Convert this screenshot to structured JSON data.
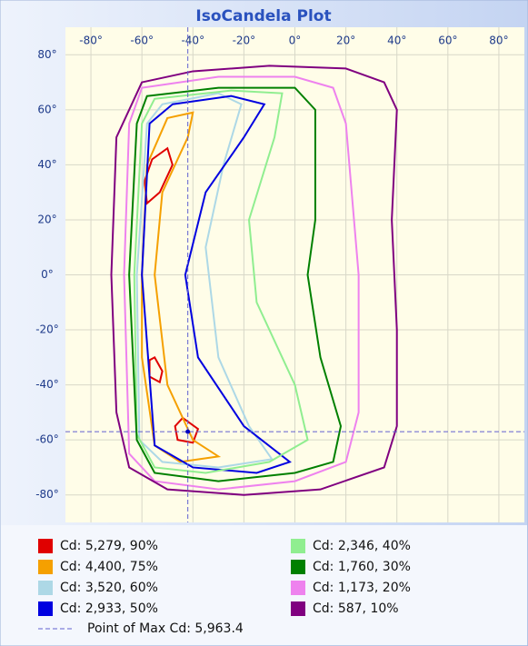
{
  "chart_data": {
    "type": "contour",
    "title": "IsoCandela Plot",
    "xlim": [
      -90,
      90
    ],
    "ylim": [
      -90,
      90
    ],
    "xticks": [
      {
        "value": -80,
        "label": "-80°"
      },
      {
        "value": -60,
        "label": "-60°"
      },
      {
        "value": -40,
        "label": "-40°"
      },
      {
        "value": -20,
        "label": "-20°"
      },
      {
        "value": 0,
        "label": "0°"
      },
      {
        "value": 20,
        "label": "20°"
      },
      {
        "value": 40,
        "label": "40°"
      },
      {
        "value": 60,
        "label": "60°"
      },
      {
        "value": 80,
        "label": "80°"
      }
    ],
    "yticks": [
      {
        "value": 80,
        "label": "80°"
      },
      {
        "value": 60,
        "label": "60°"
      },
      {
        "value": 40,
        "label": "40°"
      },
      {
        "value": 20,
        "label": "20°"
      },
      {
        "value": 0,
        "label": "0°"
      },
      {
        "value": -20,
        "label": "-20°"
      },
      {
        "value": -40,
        "label": "-40°"
      },
      {
        "value": -60,
        "label": "-60°"
      },
      {
        "value": -80,
        "label": "-80°"
      }
    ],
    "grid": true,
    "series": [
      {
        "name": "Cd: 5,279, 90%",
        "color": "#e00000",
        "contours": [
          [
            [
              -50,
              46
            ],
            [
              -48,
              40
            ],
            [
              -53,
              30
            ],
            [
              -58,
              26
            ],
            [
              -59,
              34
            ],
            [
              -56,
              42
            ]
          ],
          [
            [
              -55,
              -30
            ],
            [
              -52,
              -35
            ],
            [
              -53,
              -39
            ],
            [
              -57,
              -37
            ],
            [
              -57,
              -31
            ]
          ],
          [
            [
              -44,
              -52
            ],
            [
              -38,
              -56
            ],
            [
              -40,
              -61
            ],
            [
              -46,
              -60
            ],
            [
              -47,
              -55
            ]
          ]
        ]
      },
      {
        "name": "Cd: 4,400, 75%",
        "color": "#f5a000",
        "contours": [
          [
            [
              -50,
              57
            ],
            [
              -40,
              59
            ],
            [
              -42,
              50
            ],
            [
              -52,
              30
            ],
            [
              -55,
              0
            ],
            [
              -50,
              -40
            ],
            [
              -40,
              -60
            ],
            [
              -30,
              -66
            ],
            [
              -45,
              -68
            ],
            [
              -55,
              -62
            ],
            [
              -60,
              -30
            ],
            [
              -60,
              0
            ],
            [
              -58,
              40
            ]
          ]
        ]
      },
      {
        "name": "Cd: 3,520, 60%",
        "color": "#add8e6",
        "contours": [
          [
            [
              -52,
              62
            ],
            [
              -30,
              66
            ],
            [
              -21,
              62
            ],
            [
              -28,
              40
            ],
            [
              -35,
              10
            ],
            [
              -30,
              -30
            ],
            [
              -18,
              -55
            ],
            [
              -9,
              -67
            ],
            [
              -30,
              -70
            ],
            [
              -52,
              -68
            ],
            [
              -61,
              -60
            ],
            [
              -62,
              0
            ],
            [
              -58,
              55
            ]
          ]
        ]
      },
      {
        "name": "Cd: 2,933, 50%",
        "color": "#0000e0",
        "contours": [
          [
            [
              -48,
              62
            ],
            [
              -25,
              65
            ],
            [
              -12,
              62
            ],
            [
              -20,
              50
            ],
            [
              -35,
              30
            ],
            [
              -43,
              0
            ],
            [
              -38,
              -30
            ],
            [
              -20,
              -55
            ],
            [
              -2,
              -68
            ],
            [
              -15,
              -72
            ],
            [
              -40,
              -70
            ],
            [
              -55,
              -62
            ],
            [
              -60,
              0
            ],
            [
              -57,
              55
            ]
          ]
        ]
      },
      {
        "name": "Cd: 2,346, 40%",
        "color": "#90ee90",
        "contours": [
          [
            [
              -55,
              64
            ],
            [
              -25,
              67
            ],
            [
              -5,
              66
            ],
            [
              -8,
              50
            ],
            [
              -18,
              20
            ],
            [
              -15,
              -10
            ],
            [
              0,
              -40
            ],
            [
              5,
              -60
            ],
            [
              -10,
              -68
            ],
            [
              -35,
              -72
            ],
            [
              -55,
              -70
            ],
            [
              -62,
              -58
            ],
            [
              -63,
              0
            ],
            [
              -60,
              55
            ]
          ]
        ]
      },
      {
        "name": "Cd: 1,760, 30%",
        "color": "#008000",
        "contours": [
          [
            [
              -58,
              65
            ],
            [
              -30,
              68
            ],
            [
              0,
              68
            ],
            [
              8,
              60
            ],
            [
              8,
              20
            ],
            [
              5,
              0
            ],
            [
              10,
              -30
            ],
            [
              18,
              -55
            ],
            [
              15,
              -68
            ],
            [
              0,
              -72
            ],
            [
              -30,
              -75
            ],
            [
              -55,
              -72
            ],
            [
              -62,
              -60
            ],
            [
              -65,
              0
            ],
            [
              -62,
              55
            ]
          ]
        ]
      },
      {
        "name": "Cd: 1,173, 20%",
        "color": "#ee82ee",
        "contours": [
          [
            [
              -60,
              68
            ],
            [
              -30,
              72
            ],
            [
              0,
              72
            ],
            [
              15,
              68
            ],
            [
              20,
              55
            ],
            [
              25,
              0
            ],
            [
              25,
              -50
            ],
            [
              20,
              -68
            ],
            [
              0,
              -75
            ],
            [
              -30,
              -78
            ],
            [
              -55,
              -75
            ],
            [
              -65,
              -65
            ],
            [
              -67,
              0
            ],
            [
              -65,
              55
            ]
          ]
        ]
      },
      {
        "name": "Cd: 587, 10%",
        "color": "#800080",
        "contours": [
          [
            [
              -60,
              70
            ],
            [
              -40,
              74
            ],
            [
              -10,
              76
            ],
            [
              20,
              75
            ],
            [
              35,
              70
            ],
            [
              40,
              60
            ],
            [
              38,
              20
            ],
            [
              40,
              -20
            ],
            [
              40,
              -55
            ],
            [
              35,
              -70
            ],
            [
              10,
              -78
            ],
            [
              -20,
              -80
            ],
            [
              -50,
              -78
            ],
            [
              -65,
              -70
            ],
            [
              -70,
              -50
            ],
            [
              -72,
              0
            ],
            [
              -70,
              50
            ]
          ]
        ]
      }
    ],
    "max_point": {
      "name": "Point of Max Cd: 5,963.4",
      "x": -42,
      "y": -57,
      "color": "#6060d0"
    }
  }
}
